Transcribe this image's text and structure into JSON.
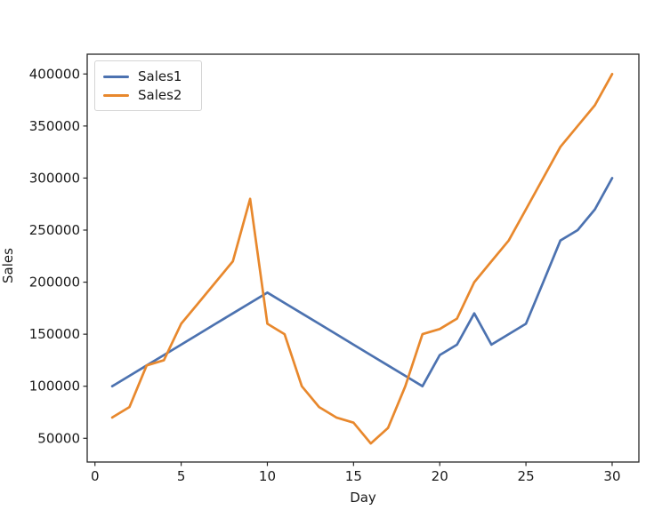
{
  "figure": {
    "background": "#ffffff",
    "text_color": "#1a1a1a",
    "spine_color": "#262626"
  },
  "chart_data": {
    "type": "line",
    "title": "",
    "xlabel": "Day",
    "ylabel": "Sales",
    "grid": false,
    "legend_position": "upper-left",
    "xlim": [
      -0.45,
      31.55
    ],
    "ylim": [
      27200,
      419000
    ],
    "xticks": [
      0,
      5,
      10,
      15,
      20,
      25,
      30
    ],
    "yticks": [
      50000,
      100000,
      150000,
      200000,
      250000,
      300000,
      350000,
      400000
    ],
    "x": [
      1,
      2,
      3,
      4,
      5,
      6,
      7,
      8,
      9,
      10,
      11,
      12,
      13,
      14,
      15,
      16,
      17,
      18,
      19,
      20,
      21,
      22,
      23,
      24,
      25,
      26,
      27,
      28,
      29,
      30
    ],
    "series": [
      {
        "name": "Sales1",
        "color": "#4c72b0",
        "values": [
          100000,
          110000,
          120000,
          130000,
          140000,
          150000,
          160000,
          170000,
          180000,
          190000,
          180000,
          170000,
          160000,
          150000,
          140000,
          130000,
          120000,
          110000,
          100000,
          130000,
          140000,
          170000,
          140000,
          150000,
          160000,
          200000,
          240000,
          250000,
          270000,
          300000
        ]
      },
      {
        "name": "Sales2",
        "color": "#e8882d",
        "values": [
          70000,
          80000,
          120000,
          125000,
          160000,
          180000,
          200000,
          220000,
          280000,
          160000,
          150000,
          100000,
          80000,
          70000,
          65000,
          45000,
          60000,
          100000,
          150000,
          155000,
          165000,
          200000,
          220000,
          240000,
          270000,
          300000,
          330000,
          350000,
          370000,
          400000
        ]
      }
    ]
  }
}
